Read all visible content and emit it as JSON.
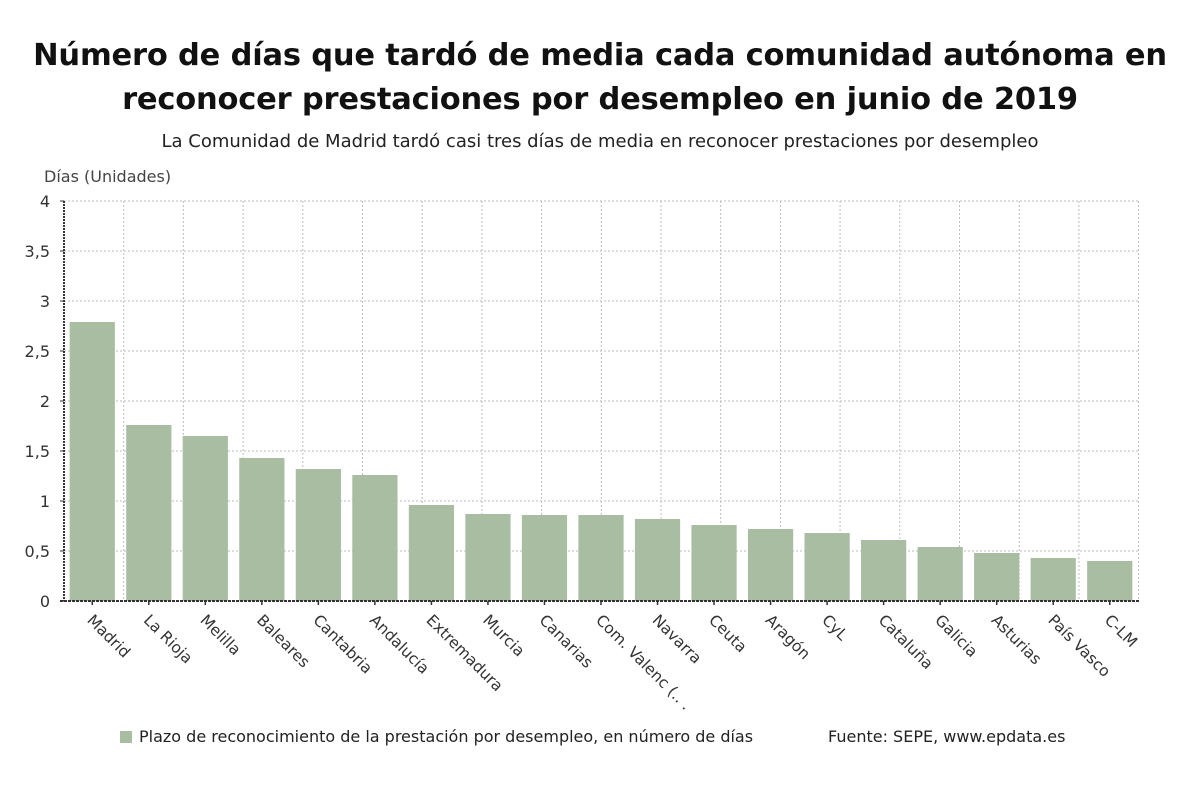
{
  "header": {
    "title_line1": "Número de días que tardó de media cada comunidad autónoma en",
    "title_line2": "reconocer prestaciones por desempleo en junio de 2019",
    "subtitle": "La Comunidad de Madrid tardó casi tres días de media en reconocer prestaciones por desempleo"
  },
  "footer": {
    "legend_label": "Plazo de reconocimiento de la prestación por desempleo, en número de días",
    "source": "Fuente: SEPE, www.epdata.es"
  },
  "colors": {
    "bar": "#a9bda3",
    "grid": "#bdbdbd",
    "axis": "#333333"
  },
  "chart_data": {
    "type": "bar",
    "title": "Número de días que tardó de media cada comunidad autónoma en reconocer prestaciones por desempleo en junio de 2019",
    "subtitle": "La Comunidad de Madrid tardó casi tres días de media en reconocer prestaciones por desempleo",
    "xlabel": "",
    "ylabel": "Días (Unidades)",
    "ylim": [
      0,
      4
    ],
    "yticks": [
      0,
      0.5,
      1,
      1.5,
      2,
      2.5,
      3,
      3.5,
      4
    ],
    "ytick_labels": [
      "0",
      "0,5",
      "1",
      "1,5",
      "2",
      "2,5",
      "3",
      "3,5",
      "4"
    ],
    "grid": true,
    "legend_position": "bottom-left",
    "categories": [
      "Madrid",
      "La Rioja",
      "Melilla",
      "Baleares",
      "Cantabria",
      "Andalucía",
      "Extremadura",
      "Murcia",
      "Canarias",
      "Com. Valenc (...)",
      "Navarra",
      "Ceuta",
      "Aragón",
      "CyL",
      "Cataluña",
      "Galicia",
      "Asturias",
      "País Vasco",
      "C-LM"
    ],
    "category_labels_display": [
      "Madrid",
      "La Rioja",
      "Melilla",
      "Baleares",
      "Cantabria",
      "Andalucía",
      "Extremadura",
      "Murcia",
      "Canarias",
      "Com. Valenc (.. .",
      "Navarra",
      "Ceuta",
      "Aragón",
      "CyL",
      "Cataluña",
      "Galicia",
      "Asturias",
      "País Vasco",
      "C-LM"
    ],
    "series": [
      {
        "name": "Plazo de reconocimiento de la prestación por desempleo, en número de días",
        "values": [
          2.79,
          1.76,
          1.65,
          1.43,
          1.32,
          1.26,
          0.96,
          0.87,
          0.86,
          0.86,
          0.82,
          0.76,
          0.72,
          0.68,
          0.61,
          0.54,
          0.48,
          0.43,
          0.4
        ]
      }
    ],
    "source": "Fuente: SEPE, www.epdata.es"
  }
}
